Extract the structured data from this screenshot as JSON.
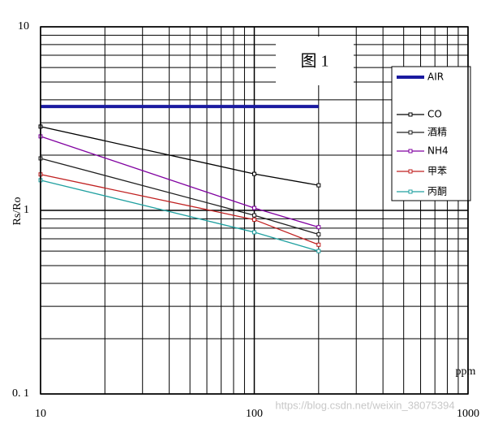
{
  "chart_data": {
    "type": "line",
    "title": "图 1",
    "y_label": "Rs/Ro",
    "x_label": "ppm",
    "log_x": true,
    "log_y": true,
    "grid": true,
    "xlim": [
      10,
      1000
    ],
    "ylim": [
      0.1,
      10
    ],
    "xticks": [
      10,
      100,
      1000
    ],
    "yticks": [
      {
        "value": 0.1,
        "label": "0. 1"
      },
      1,
      10
    ],
    "xminorticks": [
      20,
      30,
      40,
      50,
      60,
      70,
      80,
      90,
      200,
      300,
      400,
      500,
      600,
      700,
      800,
      900
    ],
    "yminorticks": [
      0.2,
      0.3,
      0.4,
      0.5,
      0.6,
      0.7,
      0.8,
      0.9,
      2,
      3,
      4,
      5,
      6,
      7,
      8,
      9
    ],
    "x": [
      10,
      100,
      200
    ],
    "series": [
      {
        "name": "AIR",
        "color": "#1a1aa0",
        "values": [
          3.68,
          3.68,
          3.68
        ]
      },
      {
        "name": "CO",
        "color": "#000000",
        "values": [
          2.86,
          1.58,
          1.37
        ]
      },
      {
        "name": "酒精",
        "color": "#202020",
        "values": [
          1.92,
          0.94,
          0.74
        ]
      },
      {
        "name": "NH4",
        "color": "#8000a0",
        "values": [
          2.53,
          1.03,
          0.81
        ]
      },
      {
        "name": "甲苯",
        "color": "#c02020",
        "values": [
          1.57,
          0.89,
          0.65
        ]
      },
      {
        "name": "丙酮",
        "color": "#20a0a0",
        "values": [
          1.46,
          0.76,
          0.6
        ]
      }
    ],
    "watermark": "https://blog.csdn.net/weixin_38075394"
  }
}
